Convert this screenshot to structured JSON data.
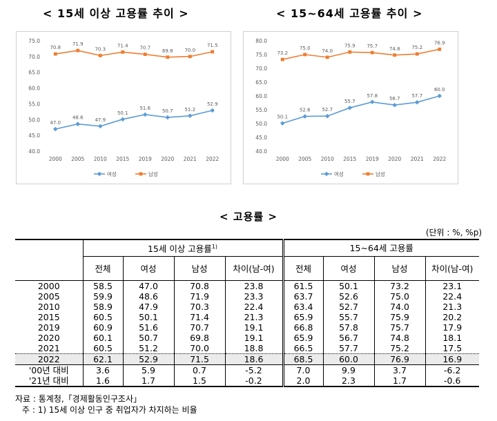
{
  "chart_data": [
    {
      "type": "line",
      "title": "< 15세 이상 고용률 추이 >",
      "categories": [
        "2000",
        "2005",
        "2010",
        "2015",
        "2019",
        "2020",
        "2021",
        "2022"
      ],
      "ylim": [
        40.0,
        75.0
      ],
      "yticks": [
        "40.0",
        "45.0",
        "50.0",
        "55.0",
        "60.0",
        "65.0",
        "70.0",
        "75.0"
      ],
      "series": [
        {
          "name": "여성",
          "color": "#5b9bd5",
          "values": [
            47.0,
            48.6,
            47.9,
            50.1,
            51.6,
            50.7,
            51.2,
            52.9
          ],
          "labels": [
            "47.0",
            "48.6",
            "47.9",
            "50.1",
            "51.6",
            "50.7",
            "51.2",
            "52.9"
          ]
        },
        {
          "name": "남성",
          "color": "#ed7d31",
          "values": [
            70.8,
            71.9,
            70.3,
            71.4,
            70.7,
            69.8,
            70.0,
            71.5
          ],
          "labels": [
            "70.8",
            "71.9",
            "70.3",
            "71.4",
            "70.7",
            "69.8",
            "70.0",
            "71.5"
          ]
        }
      ],
      "legend": "bottom",
      "grid": false
    },
    {
      "type": "line",
      "title": "< 15~64세 고용률 추이 >",
      "categories": [
        "2000",
        "2005",
        "2010",
        "2015",
        "2019",
        "2020",
        "2021",
        "2022"
      ],
      "ylim": [
        40.0,
        80.0
      ],
      "yticks": [
        "40.0",
        "45.0",
        "50.0",
        "55.0",
        "60.0",
        "65.0",
        "70.0",
        "75.0",
        "80.0"
      ],
      "series": [
        {
          "name": "여성",
          "color": "#5b9bd5",
          "values": [
            50.1,
            52.6,
            52.7,
            55.7,
            57.8,
            56.7,
            57.7,
            60.0
          ],
          "labels": [
            "50.1",
            "52.6",
            "52.7",
            "55.7",
            "57.8",
            "56.7",
            "57.7",
            "60.0"
          ]
        },
        {
          "name": "남성",
          "color": "#ed7d31",
          "values": [
            73.2,
            75.0,
            74.0,
            75.9,
            75.7,
            74.8,
            75.2,
            76.9
          ],
          "labels": [
            "73.2",
            "75.0",
            "74.0",
            "75.9",
            "75.7",
            "74.8",
            "75.2",
            "76.9"
          ]
        }
      ],
      "legend": "bottom",
      "grid": false
    }
  ],
  "table": {
    "title": "< 고용률 >",
    "unit": "(단위 : %, %p)",
    "group1": "15세 이상 고용률",
    "group1_note": "1)",
    "group2": "15~64세 고용률",
    "cols": [
      "전체",
      "여성",
      "남성",
      "차이(남-여)"
    ],
    "rows": [
      [
        "2000",
        "58.5",
        "47.0",
        "70.8",
        "23.8",
        "61.5",
        "50.1",
        "73.2",
        "23.1"
      ],
      [
        "2005",
        "59.9",
        "48.6",
        "71.9",
        "23.3",
        "63.7",
        "52.6",
        "75.0",
        "22.4"
      ],
      [
        "2010",
        "58.9",
        "47.9",
        "70.3",
        "22.4",
        "63.4",
        "52.7",
        "74.0",
        "21.3"
      ],
      [
        "2015",
        "60.5",
        "50.1",
        "71.4",
        "21.3",
        "65.9",
        "55.7",
        "75.9",
        "20.2"
      ],
      [
        "2019",
        "60.9",
        "51.6",
        "70.7",
        "19.1",
        "66.8",
        "57.8",
        "75.7",
        "17.9"
      ],
      [
        "2020",
        "60.1",
        "50.7",
        "69.8",
        "19.1",
        "65.9",
        "56.7",
        "74.8",
        "18.1"
      ],
      [
        "2021",
        "60.5",
        "51.2",
        "70.0",
        "18.8",
        "66.5",
        "57.7",
        "75.2",
        "17.5"
      ]
    ],
    "highlight_row": [
      "2022",
      "62.1",
      "52.9",
      "71.5",
      "18.6",
      "68.5",
      "60.0",
      "76.9",
      "16.9"
    ],
    "diff_rows": [
      [
        "'00년 대비",
        "3.6",
        "5.9",
        "0.7",
        "-5.2",
        "7.0",
        "9.9",
        "3.7",
        "-6.2"
      ],
      [
        "'21년 대비",
        "1.6",
        "1.7",
        "1.5",
        "-0.2",
        "2.0",
        "2.3",
        "1.7",
        "-0.6"
      ]
    ]
  },
  "footer": {
    "source": "자료 : 통계청,「경제활동인구조사」",
    "note": "주 : 1) 15세 이상 인구 중 취업자가 차지하는 비율"
  }
}
